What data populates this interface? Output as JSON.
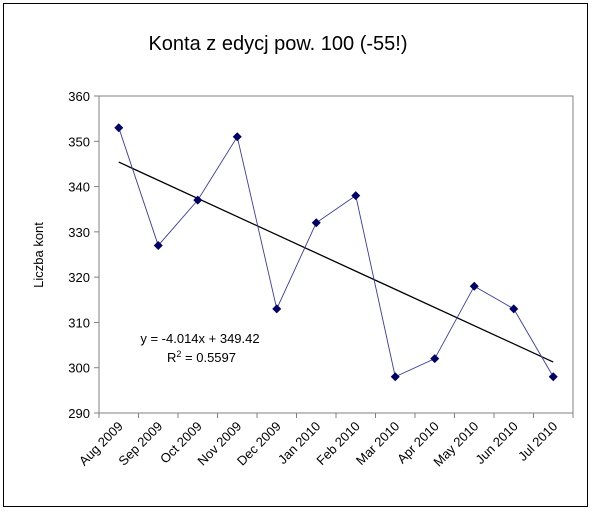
{
  "chart_data": {
    "type": "line",
    "title": "Konta z edycj pow. 100 (-55!)",
    "xlabel": "",
    "ylabel": "Liczba kont",
    "categories": [
      "Aug 2009",
      "Sep 2009",
      "Oct 2009",
      "Nov 2009",
      "Dec 2009",
      "Jan 2010",
      "Feb 2010",
      "Mar 2010",
      "Apr 2010",
      "May 2010",
      "Jun 2010",
      "Jul 2010"
    ],
    "series": [
      {
        "values": [
          353,
          327,
          337,
          351,
          313,
          332,
          338,
          298,
          302,
          318,
          313,
          298
        ]
      }
    ],
    "trendline": {
      "type": "linear",
      "slope": -4.014,
      "intercept": 349.42,
      "equation": "y = -4.014x + 349.42",
      "r2_label": "R",
      "r2_superscript": "2",
      "r2_value": " = 0.5597"
    },
    "ylim": [
      290,
      360
    ],
    "yticks": [
      "290",
      "300",
      "310",
      "320",
      "330",
      "340",
      "350",
      "360"
    ],
    "grid": false,
    "legend": "none",
    "colors": {
      "series_line": "#3a3aa8",
      "marker": "#000066",
      "trendline": "#000000",
      "axis": "#808080"
    }
  }
}
